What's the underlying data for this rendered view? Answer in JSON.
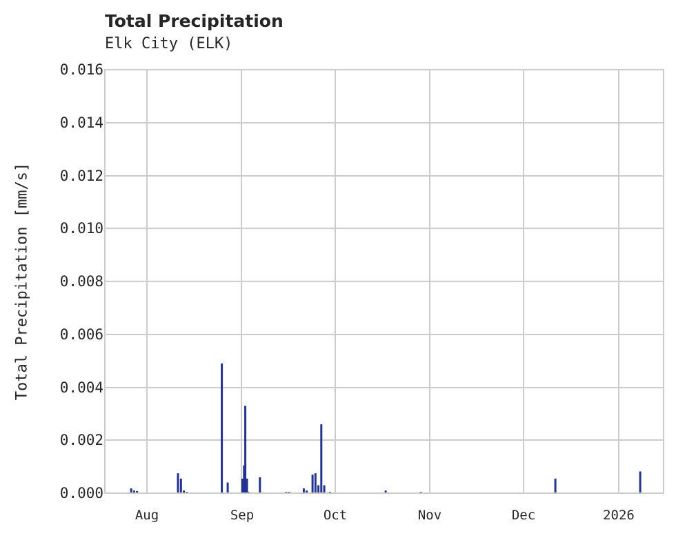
{
  "chart_data": {
    "type": "bar",
    "title": "Total Precipitation",
    "subtitle": "Elk City (ELK)",
    "xlabel": "",
    "ylabel": "Total Precipitation [mm/s]",
    "ylim": [
      0,
      0.016
    ],
    "yticks": [
      "0.000",
      "0.002",
      "0.004",
      "0.006",
      "0.008",
      "0.010",
      "0.012",
      "0.014",
      "0.016"
    ],
    "xticks": [
      "Aug",
      "Sep",
      "Oct",
      "Nov",
      "Dec",
      "2026"
    ],
    "grid": true,
    "legend": null,
    "bar_color": "#233290",
    "series": [
      {
        "name": "Total Precipitation",
        "points": [
          {
            "date": "2025-07-18",
            "value": 0.00018
          },
          {
            "date": "2025-07-19",
            "value": 0.0001
          },
          {
            "date": "2025-07-20",
            "value": 8e-05
          },
          {
            "date": "2025-08-03",
            "value": 0.00075
          },
          {
            "date": "2025-08-04",
            "value": 0.00055
          },
          {
            "date": "2025-08-05",
            "value": 0.0001
          },
          {
            "date": "2025-08-06",
            "value": 5e-05
          },
          {
            "date": "2025-08-18",
            "value": 0.0049
          },
          {
            "date": "2025-08-20",
            "value": 0.0004
          },
          {
            "date": "2025-08-25",
            "value": 0.00055
          },
          {
            "date": "2025-08-25",
            "value": 0.00105
          },
          {
            "date": "2025-08-26",
            "value": 0.0033
          },
          {
            "date": "2025-08-26",
            "value": 0.00055
          },
          {
            "date": "2025-08-27",
            "value": 5e-05
          },
          {
            "date": "2025-08-31",
            "value": 0.0006
          },
          {
            "date": "2025-09-09",
            "value": 5e-05
          },
          {
            "date": "2025-09-10",
            "value": 5e-05
          },
          {
            "date": "2025-09-15",
            "value": 0.00018
          },
          {
            "date": "2025-09-16",
            "value": 0.0001
          },
          {
            "date": "2025-09-18",
            "value": 0.0007
          },
          {
            "date": "2025-09-19",
            "value": 0.00075
          },
          {
            "date": "2025-09-20",
            "value": 0.0003
          },
          {
            "date": "2025-09-21",
            "value": 0.0026
          },
          {
            "date": "2025-09-22",
            "value": 0.0003
          },
          {
            "date": "2025-09-24",
            "value": 5e-05
          },
          {
            "date": "2025-10-13",
            "value": 0.0001
          },
          {
            "date": "2025-10-25",
            "value": 5e-05
          },
          {
            "date": "2025-12-10",
            "value": 0.00055
          },
          {
            "date": "2026-01-08",
            "value": 0.00082
          }
        ]
      }
    ]
  }
}
